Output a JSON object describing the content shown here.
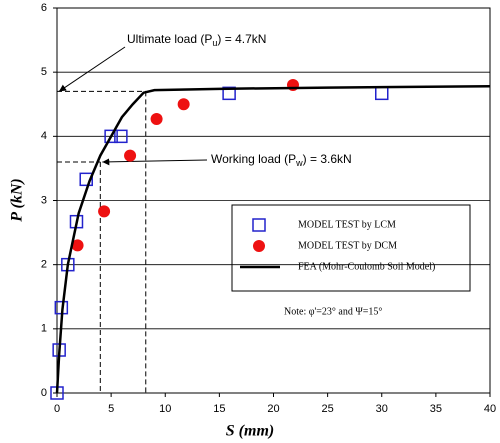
{
  "chart_data": {
    "type": "scatter-line",
    "xlabel": "S (mm)",
    "ylabel": "P (kN)",
    "xlim": [
      0,
      40
    ],
    "ylim": [
      0,
      6
    ],
    "xticks": [
      0,
      5,
      10,
      15,
      20,
      25,
      30,
      35,
      40
    ],
    "yticks": [
      0,
      1,
      2,
      3,
      4,
      5,
      6
    ],
    "grid": true,
    "series": [
      {
        "name": "MODEL TEST by LCM",
        "marker": "square",
        "color": "#2222cc",
        "x": [
          0,
          0.2,
          0.4,
          1,
          1.8,
          2.7,
          5,
          5.9,
          15.9,
          30
        ],
        "values": [
          0,
          0.67,
          1.33,
          2,
          2.67,
          3.33,
          4,
          4,
          4.67,
          4.67
        ]
      },
      {
        "name": "MODEL TEST by DCM",
        "marker": "circle",
        "color": "#ee1111",
        "x": [
          1.9,
          4.35,
          6.75,
          9.2,
          11.7,
          21.8
        ],
        "values": [
          2.3,
          2.83,
          3.7,
          4.27,
          4.5,
          4.8
        ]
      },
      {
        "name": "FEA (Mohr-Coulomb Soil Model)",
        "marker": "line",
        "color": "#000000",
        "x": [
          0,
          0.2,
          0.5,
          1,
          2,
          3,
          4,
          5,
          6,
          7,
          8,
          9,
          15,
          25,
          40
        ],
        "values": [
          0,
          0.6,
          1.3,
          2,
          2.8,
          3.3,
          3.7,
          4.0,
          4.3,
          4.5,
          4.68,
          4.72,
          4.74,
          4.76,
          4.78
        ]
      }
    ],
    "annotations": {
      "ultimate": {
        "prefix": "Ultimate load (P",
        "sub": "u",
        "suffix": ") = 4.7kN",
        "x": 8.2,
        "y": 4.7
      },
      "working": {
        "prefix": "Working load (P",
        "sub": "w",
        "suffix": ") = 3.6kN",
        "x": 4,
        "y": 3.6
      }
    },
    "note": "Note: φ'=23° and Ψ=15°"
  }
}
